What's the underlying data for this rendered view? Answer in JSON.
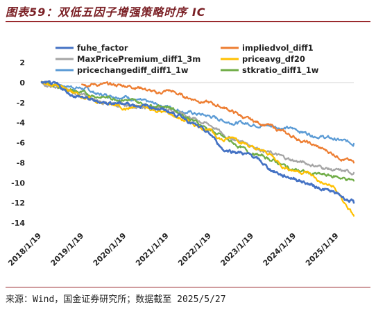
{
  "title": "图表59：双低五因子增强策略时序 IC",
  "source": "来源：Wind，国金证券研究所；数据截至 2025/5/27",
  "chart_data": {
    "type": "line",
    "xlim": [
      "2018-01-19",
      "2025-05-27"
    ],
    "ylim": [
      -14,
      2
    ],
    "yticks": [
      2,
      0,
      -2,
      -4,
      -6,
      -8,
      -10,
      -12,
      -14
    ],
    "xticks": [
      {
        "label": "2018/1/19",
        "date": "2018-01-19"
      },
      {
        "label": "2019/1/19",
        "date": "2019-01-19"
      },
      {
        "label": "2020/1/19",
        "date": "2020-01-19"
      },
      {
        "label": "2021/1/19",
        "date": "2021-01-19"
      },
      {
        "label": "2022/1/19",
        "date": "2022-01-19"
      },
      {
        "label": "2023/1/19",
        "date": "2023-01-19"
      },
      {
        "label": "2024/1/19",
        "date": "2024-01-19"
      },
      {
        "label": "2025/1/19",
        "date": "2025-01-19"
      }
    ],
    "legend_position": "top",
    "grid": false,
    "series": [
      {
        "name": "fuhe_factor",
        "color": "#4472C4",
        "width": 2.6,
        "points": [
          [
            "2018-01-19",
            0
          ],
          [
            "2018-06-01",
            -0.3
          ],
          [
            "2018-10-01",
            -1.2
          ],
          [
            "2019-01-19",
            -1.5
          ],
          [
            "2019-05-01",
            -1.9
          ],
          [
            "2019-09-01",
            -2.0
          ],
          [
            "2020-01-19",
            -2.1
          ],
          [
            "2020-06-01",
            -2.3
          ],
          [
            "2020-10-01",
            -2.5
          ],
          [
            "2021-01-19",
            -2.9
          ],
          [
            "2021-06-01",
            -3.5
          ],
          [
            "2021-10-01",
            -4.5
          ],
          [
            "2022-01-19",
            -5.3
          ],
          [
            "2022-05-01",
            -6.7
          ],
          [
            "2022-09-01",
            -6.9
          ],
          [
            "2023-01-19",
            -7.4
          ],
          [
            "2023-06-01",
            -8.6
          ],
          [
            "2023-10-01",
            -9.3
          ],
          [
            "2024-01-19",
            -9.6
          ],
          [
            "2024-05-01",
            -10.1
          ],
          [
            "2024-09-01",
            -10.6
          ],
          [
            "2025-01-19",
            -11.2
          ],
          [
            "2025-05-27",
            -12.0
          ]
        ]
      },
      {
        "name": "impliedvol_diff1",
        "color": "#ED7D31",
        "width": 2.2,
        "points": [
          [
            "2019-01-01",
            -0.1
          ],
          [
            "2019-06-01",
            -0.2
          ],
          [
            "2020-01-19",
            -0.3
          ],
          [
            "2020-06-01",
            -0.5
          ],
          [
            "2020-10-01",
            -1.1
          ],
          [
            "2021-01-19",
            -0.8
          ],
          [
            "2021-06-01",
            -1.4
          ],
          [
            "2022-01-19",
            -2.1
          ],
          [
            "2022-06-01",
            -2.6
          ],
          [
            "2022-12-01",
            -3.7
          ],
          [
            "2023-06-01",
            -4.3
          ],
          [
            "2023-12-01",
            -5.3
          ],
          [
            "2024-06-01",
            -6.2
          ],
          [
            "2024-12-01",
            -7.1
          ],
          [
            "2025-03-01",
            -7.6
          ],
          [
            "2025-05-27",
            -8.0
          ]
        ]
      },
      {
        "name": "MaxPricePremium_diff1_3m",
        "color": "#A5A5A5",
        "width": 2.2,
        "points": [
          [
            "2018-01-19",
            0
          ],
          [
            "2018-06-01",
            -0.5
          ],
          [
            "2018-12-01",
            -1.2
          ],
          [
            "2019-06-01",
            -1.8
          ],
          [
            "2020-01-19",
            -2.3
          ],
          [
            "2020-06-01",
            -2.4
          ],
          [
            "2021-01-19",
            -2.6
          ],
          [
            "2021-06-01",
            -3.2
          ],
          [
            "2022-01-19",
            -4.3
          ],
          [
            "2022-06-01",
            -5.4
          ],
          [
            "2022-12-01",
            -6.1
          ],
          [
            "2023-06-01",
            -7.0
          ],
          [
            "2023-12-01",
            -7.7
          ],
          [
            "2024-06-01",
            -8.2
          ],
          [
            "2025-01-01",
            -8.8
          ],
          [
            "2025-05-27",
            -9.0
          ]
        ]
      },
      {
        "name": "priceavg_df20",
        "color": "#FFC000",
        "width": 2.2,
        "points": [
          [
            "2018-01-19",
            0
          ],
          [
            "2018-06-01",
            -0.3
          ],
          [
            "2018-12-01",
            -1.2
          ],
          [
            "2019-06-01",
            -2.0
          ],
          [
            "2019-12-01",
            -2.4
          ],
          [
            "2020-01-19",
            -2.6
          ],
          [
            "2020-06-01",
            -2.4
          ],
          [
            "2020-10-01",
            -2.8
          ],
          [
            "2021-01-19",
            -3.1
          ],
          [
            "2021-06-01",
            -3.8
          ],
          [
            "2021-10-01",
            -4.3
          ],
          [
            "2022-01-19",
            -4.9
          ],
          [
            "2022-05-01",
            -5.8
          ],
          [
            "2022-08-01",
            -5.4
          ],
          [
            "2023-01-19",
            -6.6
          ],
          [
            "2023-06-01",
            -7.1
          ],
          [
            "2023-10-01",
            -8.4
          ],
          [
            "2024-01-19",
            -8.8
          ],
          [
            "2024-05-01",
            -9.0
          ],
          [
            "2024-09-01",
            -10.1
          ],
          [
            "2024-12-01",
            -10.4
          ],
          [
            "2025-03-01",
            -11.9
          ],
          [
            "2025-05-27",
            -13.3
          ]
        ]
      },
      {
        "name": "pricechangediff_diff1_1w",
        "color": "#5B9BD5",
        "width": 2.2,
        "points": [
          [
            "2018-01-19",
            0
          ],
          [
            "2018-06-01",
            -0.2
          ],
          [
            "2019-01-19",
            -0.6
          ],
          [
            "2019-06-01",
            -1.2
          ],
          [
            "2020-01-19",
            -1.4
          ],
          [
            "2020-06-01",
            -1.9
          ],
          [
            "2021-01-19",
            -2.4
          ],
          [
            "2021-06-01",
            -2.9
          ],
          [
            "2022-01-19",
            -3.4
          ],
          [
            "2022-06-01",
            -3.9
          ],
          [
            "2022-12-01",
            -4.1
          ],
          [
            "2023-06-01",
            -4.3
          ],
          [
            "2024-01-19",
            -4.7
          ],
          [
            "2024-06-01",
            -5.2
          ],
          [
            "2025-01-01",
            -5.7
          ],
          [
            "2025-05-27",
            -6.1
          ]
        ]
      },
      {
        "name": "stkratio_diff1_1w",
        "color": "#70AD47",
        "width": 2.2,
        "points": [
          [
            "2018-01-19",
            0
          ],
          [
            "2018-06-01",
            -0.4
          ],
          [
            "2019-01-19",
            -1.1
          ],
          [
            "2019-06-01",
            -1.4
          ],
          [
            "2020-01-19",
            -1.7
          ],
          [
            "2020-06-01",
            -2.1
          ],
          [
            "2021-01-19",
            -2.4
          ],
          [
            "2021-06-01",
            -3.3
          ],
          [
            "2022-01-19",
            -4.8
          ],
          [
            "2022-06-01",
            -5.7
          ],
          [
            "2022-12-01",
            -6.9
          ],
          [
            "2023-06-01",
            -7.6
          ],
          [
            "2023-12-01",
            -8.6
          ],
          [
            "2024-06-01",
            -9.1
          ],
          [
            "2025-01-01",
            -9.4
          ],
          [
            "2025-05-27",
            -9.8
          ]
        ]
      }
    ]
  }
}
